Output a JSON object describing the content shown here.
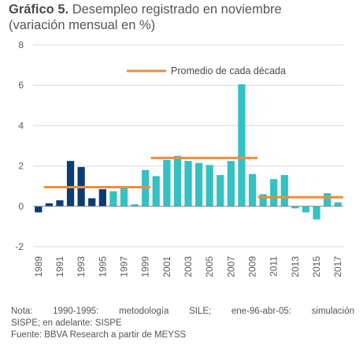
{
  "header": {
    "title_bold": "Gráfico 5.",
    "title_rest": "Desempleo registrado en noviembre",
    "subtitle": "(variación mensual en %)"
  },
  "notes": {
    "line1": "Nota: 1990-1995: metodología SILE; ene-96-abr-05: simulación",
    "line2": "SISPE; en adelante: SISPE",
    "source": "Fuente: BBVA Research a partir de MEYSS"
  },
  "colors": {
    "dark_bar": "#0b3d73",
    "light_bar": "#33c1c5",
    "average_line": "#f28b3a",
    "gridline": "#d9d9d9",
    "axis": "#808080"
  },
  "chart_data": {
    "type": "bar",
    "title": "Gráfico 5. Desempleo registrado en noviembre",
    "subtitle": "(variación mensual en %)",
    "xlabel": "",
    "ylabel": "",
    "ylim": [
      -2,
      8
    ],
    "yticks": [
      -2,
      0,
      2,
      4,
      6,
      8
    ],
    "grid": true,
    "legend_position": "top-right",
    "categories": [
      "1989",
      "1990",
      "1991",
      "1992",
      "1993",
      "1994",
      "1995",
      "1996",
      "1997",
      "1998",
      "1999",
      "2000",
      "2001",
      "2002",
      "2003",
      "2004",
      "2005",
      "2006",
      "2007",
      "2008",
      "2009",
      "2010",
      "2011",
      "2012",
      "2013",
      "2014",
      "2015",
      "2016",
      "2017"
    ],
    "tick_labels": [
      "1989",
      "1991",
      "1993",
      "1995",
      "1997",
      "1999",
      "2001",
      "2003",
      "2005",
      "2007",
      "2009",
      "2011",
      "2013",
      "2015",
      "2017"
    ],
    "values": [
      -0.3,
      0.15,
      0.3,
      2.25,
      1.95,
      0.4,
      0.85,
      0.75,
      0.9,
      0.1,
      1.8,
      1.5,
      2.3,
      2.5,
      2.25,
      2.15,
      2.05,
      1.55,
      2.25,
      6.05,
      1.6,
      0.6,
      1.35,
      1.55,
      -0.1,
      -0.3,
      -0.65,
      0.65,
      0.2
    ],
    "dark_series_categories": [
      "1989",
      "1990",
      "1991",
      "1992",
      "1993",
      "1994",
      "1995"
    ],
    "series": [
      {
        "name": "Promedio de cada década",
        "type": "line",
        "segments": [
          {
            "from": "1990",
            "to": "1999",
            "value": 0.95
          },
          {
            "from": "2000",
            "to": "2009",
            "value": 2.4
          },
          {
            "from": "2010",
            "to": "2017",
            "value": 0.45
          }
        ]
      }
    ]
  }
}
